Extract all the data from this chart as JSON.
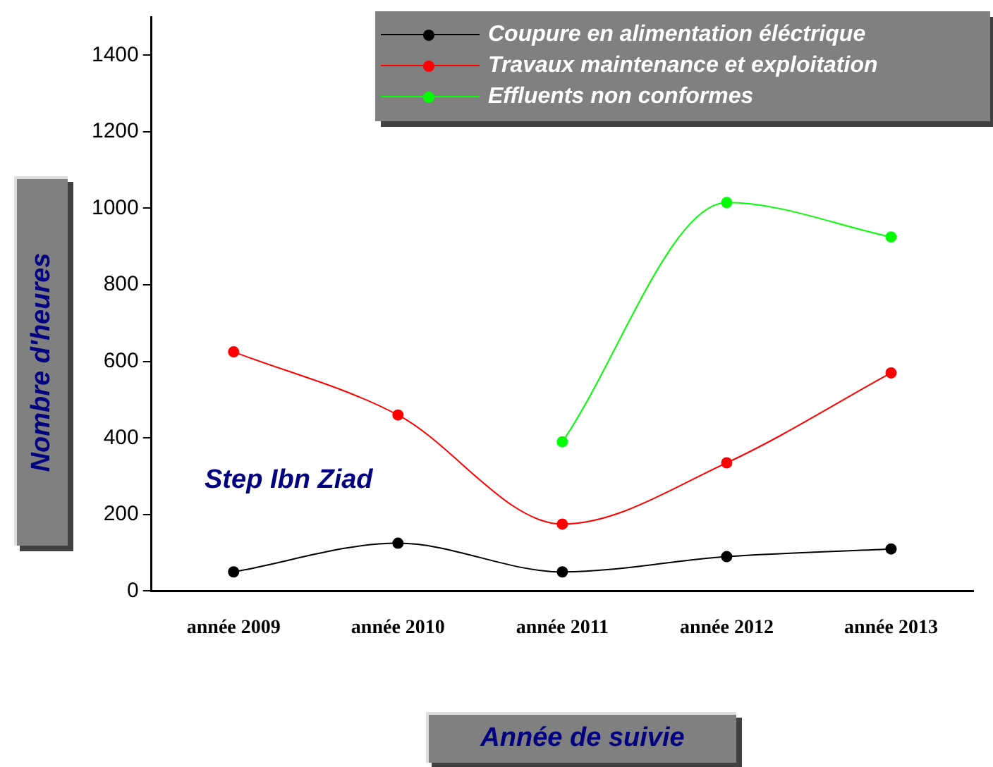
{
  "chart_data": {
    "type": "line",
    "xlabel": "Année de suivie",
    "ylabel": "Nombre d'heures",
    "categories": [
      "année 2009",
      "année 2010",
      "année 2011",
      "année 2012",
      "année 2013"
    ],
    "series": [
      {
        "name": "Coupure en alimentation éléctrique",
        "color": "#000000",
        "values": [
          50,
          125,
          50,
          90,
          110
        ]
      },
      {
        "name": "Travaux maintenance et exploitation",
        "color": "#ff0000",
        "values": [
          625,
          460,
          175,
          335,
          570
        ]
      },
      {
        "name": "Effluents non conformes",
        "color": "#00ff00",
        "values": [
          null,
          null,
          390,
          1015,
          925
        ]
      }
    ],
    "ylim": [
      0,
      1500
    ],
    "yticks": [
      0,
      200,
      400,
      600,
      800,
      1000,
      1200,
      1400
    ],
    "annotations": [
      "Step Ibn Ziad"
    ],
    "grid": false,
    "legend": "top right",
    "marker": "circle",
    "line_style": "solid"
  }
}
